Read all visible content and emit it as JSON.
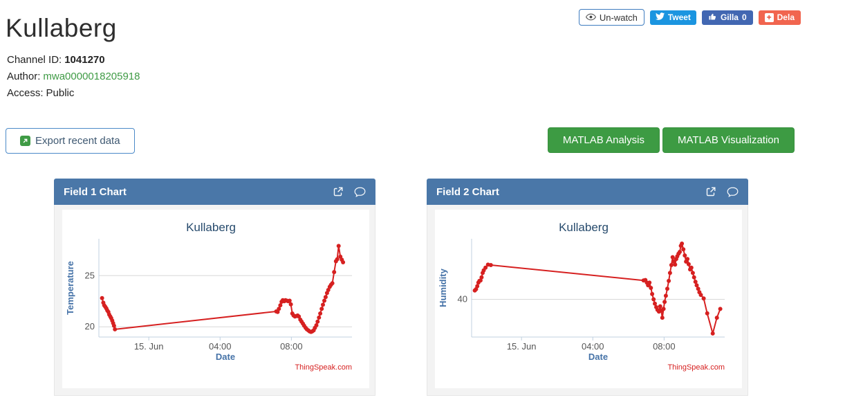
{
  "header": {
    "title": "Kullaberg",
    "channel_id_label": "Channel ID:",
    "channel_id": "1041270",
    "author_label": "Author:",
    "author": "mwa0000018205918",
    "access_label": "Access:",
    "access": "Public"
  },
  "social": {
    "unwatch_label": "Un-watch",
    "tweet_label": "Tweet",
    "like_label": "Gilla",
    "like_count": "0",
    "share_label": "Dela"
  },
  "actions": {
    "export_label": "Export recent data",
    "matlab_analysis_label": "MATLAB Analysis",
    "matlab_visualization_label": "MATLAB Visualization"
  },
  "panels": [
    {
      "title": "Field 1 Chart",
      "icons": [
        "external-link-icon",
        "comment-icon"
      ]
    },
    {
      "title": "Field 2 Chart",
      "icons": [
        "external-link-icon",
        "comment-icon"
      ]
    }
  ],
  "colors": {
    "panel_header_blue": "#4a77a8",
    "series_red": "#d62020",
    "axis_title_blue": "#4572a7",
    "chart_title_navy": "#274b6d",
    "thingspeak_green": "#3f9b45",
    "matlab_button_green": "#3d9b43",
    "twitter_blue": "#1b95e0",
    "facebook_blue": "#4267b2",
    "share_orange": "#f1654f",
    "grid_gray": "#d8d8d8",
    "axis_line_blue": "#c0d0e0"
  },
  "chart_data": [
    {
      "type": "line",
      "title": "Kullaberg",
      "xlabel": "Date",
      "ylabel": "Temperature",
      "credits": "ThingSpeak.com",
      "line_color": "#d62020",
      "grid": true,
      "x_unit": "hours relative to 15. Jun 00:00",
      "xlim": [
        -2.8,
        11.4
      ],
      "ylim": [
        19.0,
        28.6
      ],
      "y_ticks": [
        20,
        25
      ],
      "x_ticks": [
        {
          "pos": 0,
          "label": "15. Jun"
        },
        {
          "pos": 4,
          "label": "04:00"
        },
        {
          "pos": 8,
          "label": "08:00"
        }
      ],
      "points": [
        [
          -2.62,
          22.8
        ],
        [
          -2.55,
          22.35
        ],
        [
          -2.5,
          22.1
        ],
        [
          -2.44,
          21.95
        ],
        [
          -2.38,
          21.8
        ],
        [
          -2.33,
          21.6
        ],
        [
          -2.27,
          21.45
        ],
        [
          -2.22,
          21.2
        ],
        [
          -2.16,
          21.0
        ],
        [
          -2.11,
          20.85
        ],
        [
          -2.05,
          20.6
        ],
        [
          -2.0,
          20.35
        ],
        [
          -1.95,
          20.1
        ],
        [
          -1.9,
          19.75
        ],
        [
          7.15,
          21.5
        ],
        [
          7.23,
          21.45
        ],
        [
          7.3,
          21.75
        ],
        [
          7.38,
          22.1
        ],
        [
          7.45,
          22.45
        ],
        [
          7.52,
          22.6
        ],
        [
          7.6,
          22.5
        ],
        [
          7.67,
          22.6
        ],
        [
          7.75,
          22.55
        ],
        [
          7.82,
          22.5
        ],
        [
          7.9,
          22.55
        ],
        [
          7.97,
          22.2
        ],
        [
          8.05,
          21.3
        ],
        [
          8.12,
          21.1
        ],
        [
          8.2,
          21.0
        ],
        [
          8.27,
          21.05
        ],
        [
          8.35,
          21.1
        ],
        [
          8.42,
          21.0
        ],
        [
          8.5,
          20.7
        ],
        [
          8.57,
          20.5
        ],
        [
          8.65,
          20.3
        ],
        [
          8.72,
          20.1
        ],
        [
          8.8,
          19.9
        ],
        [
          8.87,
          19.75
        ],
        [
          8.95,
          19.65
        ],
        [
          9.02,
          19.55
        ],
        [
          9.1,
          19.5
        ],
        [
          9.17,
          19.55
        ],
        [
          9.25,
          19.65
        ],
        [
          9.32,
          19.9
        ],
        [
          9.4,
          20.15
        ],
        [
          9.47,
          20.5
        ],
        [
          9.55,
          20.9
        ],
        [
          9.62,
          21.3
        ],
        [
          9.7,
          21.75
        ],
        [
          9.77,
          22.15
        ],
        [
          9.85,
          22.55
        ],
        [
          9.92,
          22.9
        ],
        [
          10.0,
          23.3
        ],
        [
          10.07,
          23.6
        ],
        [
          10.15,
          23.9
        ],
        [
          10.22,
          24.1
        ],
        [
          10.3,
          24.25
        ],
        [
          10.4,
          25.35
        ],
        [
          10.5,
          26.4
        ],
        [
          10.57,
          26.6
        ],
        [
          10.65,
          27.9
        ],
        [
          10.75,
          26.85
        ],
        [
          10.83,
          26.55
        ],
        [
          10.9,
          26.3
        ]
      ]
    },
    {
      "type": "line",
      "title": "Kullaberg",
      "xlabel": "Date",
      "ylabel": "Humidity",
      "credits": "ThingSpeak.com",
      "line_color": "#d62020",
      "grid": true,
      "x_unit": "hours relative to 15. Jun 00:00",
      "xlim": [
        -2.8,
        11.4
      ],
      "ylim": [
        35.7,
        46.9
      ],
      "y_ticks": [
        40
      ],
      "x_ticks": [
        {
          "pos": 0,
          "label": "15. Jun"
        },
        {
          "pos": 4,
          "label": "04:00"
        },
        {
          "pos": 8,
          "label": "08:00"
        }
      ],
      "points": [
        [
          -2.62,
          41.0
        ],
        [
          -2.55,
          41.15
        ],
        [
          -2.48,
          41.5
        ],
        [
          -2.42,
          41.9
        ],
        [
          -2.36,
          42.1
        ],
        [
          -2.3,
          42.15
        ],
        [
          -2.24,
          42.5
        ],
        [
          -2.18,
          43.0
        ],
        [
          -2.12,
          43.3
        ],
        [
          -2.02,
          43.6
        ],
        [
          -1.88,
          43.95
        ],
        [
          -1.72,
          43.9
        ],
        [
          6.85,
          42.15
        ],
        [
          6.95,
          42.2
        ],
        [
          7.03,
          41.9
        ],
        [
          7.1,
          41.6
        ],
        [
          7.18,
          41.9
        ],
        [
          7.26,
          41.3
        ],
        [
          7.33,
          40.6
        ],
        [
          7.41,
          40.0
        ],
        [
          7.48,
          39.5
        ],
        [
          7.56,
          39.1
        ],
        [
          7.63,
          38.8
        ],
        [
          7.71,
          38.6
        ],
        [
          7.78,
          39.2
        ],
        [
          7.84,
          38.7
        ],
        [
          7.9,
          37.9
        ],
        [
          7.97,
          38.9
        ],
        [
          8.03,
          39.7
        ],
        [
          8.1,
          40.4
        ],
        [
          8.18,
          41.2
        ],
        [
          8.26,
          42.1
        ],
        [
          8.33,
          43.0
        ],
        [
          8.41,
          43.9
        ],
        [
          8.48,
          44.8
        ],
        [
          8.55,
          44.3
        ],
        [
          8.62,
          43.95
        ],
        [
          8.68,
          44.6
        ],
        [
          8.74,
          44.9
        ],
        [
          8.81,
          45.2
        ],
        [
          8.88,
          45.4
        ],
        [
          8.94,
          46.1
        ],
        [
          9.0,
          46.35
        ],
        [
          9.08,
          45.7
        ],
        [
          9.16,
          45.0
        ],
        [
          9.23,
          44.3
        ],
        [
          9.31,
          44.6
        ],
        [
          9.38,
          44.0
        ],
        [
          9.46,
          43.4
        ],
        [
          9.53,
          43.6
        ],
        [
          9.61,
          43.0
        ],
        [
          9.68,
          42.5
        ],
        [
          9.76,
          42.0
        ],
        [
          9.83,
          41.6
        ],
        [
          9.91,
          41.2
        ],
        [
          9.98,
          40.8
        ],
        [
          10.06,
          40.5
        ],
        [
          10.22,
          40.1
        ],
        [
          10.42,
          38.4
        ],
        [
          10.73,
          36.1
        ],
        [
          10.96,
          37.9
        ],
        [
          11.15,
          38.9
        ]
      ]
    }
  ]
}
